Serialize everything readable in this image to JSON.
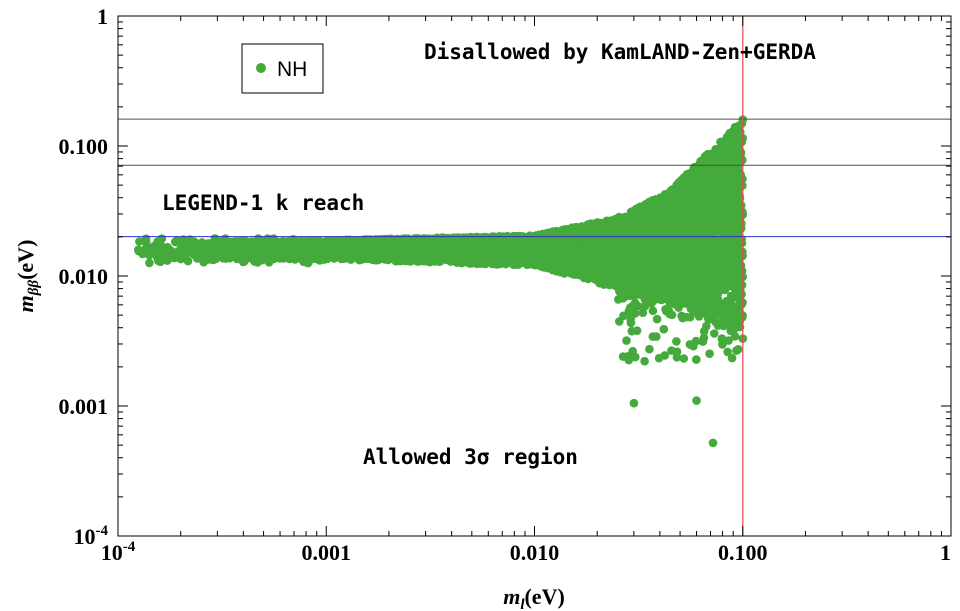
{
  "chart_data": {
    "type": "scatter",
    "x_scale": "log",
    "y_scale": "log",
    "xlim": [
      0.0001,
      1
    ],
    "ylim": [
      0.0001,
      1
    ],
    "xlabel": "m_l(eV)",
    "ylabel": "m_ββ(eV)",
    "x_ticks": [
      {
        "value": 0.0001,
        "label": "10",
        "sup": "-4"
      },
      {
        "value": 0.001,
        "label": "0.001"
      },
      {
        "value": 0.01,
        "label": "0.010"
      },
      {
        "value": 0.1,
        "label": "0.100"
      },
      {
        "value": 1,
        "label": "1"
      }
    ],
    "y_ticks": [
      {
        "value": 0.0001,
        "label": "10",
        "sup": "-4"
      },
      {
        "value": 0.001,
        "label": "0.001"
      },
      {
        "value": 0.01,
        "label": "0.010"
      },
      {
        "value": 0.1,
        "label": "0.100"
      },
      {
        "value": 1,
        "label": "1"
      }
    ],
    "series": [
      {
        "name": "NH",
        "color": "#44aa3c",
        "marker": "circle",
        "sample_points": [
          [
            0.000125,
            0.0159
          ],
          [
            0.00015,
            0.0171
          ],
          [
            0.00019,
            0.0152
          ],
          [
            0.00025,
            0.0163
          ],
          [
            0.0003,
            0.0171
          ],
          [
            0.0004,
            0.0158
          ],
          [
            0.0005,
            0.0166
          ],
          [
            0.0007,
            0.0176
          ],
          [
            0.001,
            0.0175
          ],
          [
            0.002,
            0.0175
          ],
          [
            0.004,
            0.0175
          ],
          [
            0.01,
            0.018
          ],
          [
            0.02,
            0.019
          ],
          [
            0.03,
            0.025
          ],
          [
            0.045,
            0.045
          ],
          [
            0.07,
            0.08
          ],
          [
            0.1,
            0.16
          ],
          [
            0.028,
            0.0024
          ],
          [
            0.03,
            0.00105
          ],
          [
            0.06,
            0.0011
          ],
          [
            0.072,
            0.00052
          ],
          [
            0.1,
            0.0033
          ]
        ]
      }
    ],
    "hlines": [
      {
        "name": "kamland-zen-gerda-bound-upper",
        "y": 0.161,
        "color": "#4d4d4d"
      },
      {
        "name": "kamland-zen-gerda-bound-lower",
        "y": 0.071,
        "color": "#4d4d4d"
      },
      {
        "name": "legend-1k-reach-line",
        "y": 0.0201,
        "color": "#3030c8"
      }
    ],
    "vlines": [
      {
        "name": "ml-upper-bound-line",
        "x": 0.1,
        "color": "#e8464b"
      }
    ],
    "annotations": [
      {
        "name": "disallowed-annotation",
        "text": "Disallowed by KamLAND-Zen+GERDA"
      },
      {
        "name": "legend-reach-annotation",
        "text": "LEGEND-1 k reach"
      },
      {
        "name": "allowed-region-annotation",
        "text": "Allowed 3σ region"
      }
    ],
    "legend": {
      "position": "top-left",
      "entries": [
        "NH"
      ]
    },
    "grid": false
  }
}
